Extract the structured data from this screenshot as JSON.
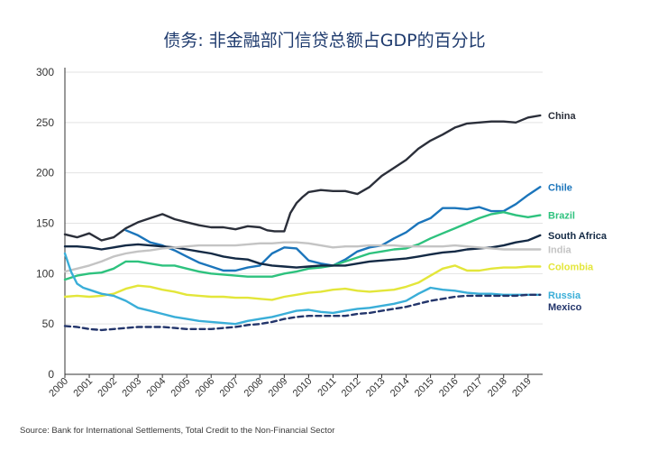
{
  "chart_data": {
    "type": "line",
    "title": "债务: 非金融部门信贷总额占GDP的百分比",
    "source": "Source: Bank for International Settlements, Total Credit to the Non-Financial Sector",
    "xlabel": "",
    "ylabel": "",
    "xlim": [
      2000,
      2019.6
    ],
    "ylim": [
      0,
      300
    ],
    "yticks": [
      0,
      50,
      100,
      150,
      200,
      250,
      300
    ],
    "xticks": [
      "2000",
      "2001",
      "2002",
      "2003",
      "2004",
      "2005",
      "2006",
      "2007",
      "2008",
      "2009",
      "2010",
      "2011",
      "2012",
      "2013",
      "2014",
      "2015",
      "2016",
      "2017",
      "2018",
      "2019"
    ],
    "grid": "horizontal",
    "series": [
      {
        "name": "China",
        "color": "#2b2f3a",
        "dash": false,
        "x": [
          2000,
          2000.5,
          2001,
          2001.5,
          2002,
          2002.5,
          2003,
          2003.5,
          2004,
          2004.5,
          2005,
          2005.5,
          2006,
          2006.5,
          2007,
          2007.5,
          2008,
          2008.3,
          2008.6,
          2009,
          2009.25,
          2009.5,
          2009.75,
          2010,
          2010.5,
          2011,
          2011.5,
          2012,
          2012.5,
          2013,
          2013.5,
          2014,
          2014.5,
          2015,
          2015.5,
          2016,
          2016.5,
          2017,
          2017.5,
          2018,
          2018.5,
          2019,
          2019.5
        ],
        "y": [
          139,
          136,
          140,
          133,
          136,
          145,
          151,
          155,
          159,
          154,
          151,
          148,
          146,
          146,
          144,
          147,
          146,
          143,
          142,
          142,
          160,
          170,
          176,
          181,
          183,
          182,
          182,
          179,
          186,
          197,
          205,
          213,
          224,
          232,
          238,
          245,
          249,
          250,
          251,
          251,
          250,
          255,
          257
        ]
      },
      {
        "name": "Chile",
        "color": "#1b75bb",
        "dash": false,
        "x": [
          2002.5,
          2003,
          2003.5,
          2004,
          2004.5,
          2005,
          2005.5,
          2006,
          2006.5,
          2007,
          2007.5,
          2008,
          2008.5,
          2009,
          2009.5,
          2010,
          2010.5,
          2011,
          2011.5,
          2012,
          2012.5,
          2013,
          2013.5,
          2014,
          2014.5,
          2015,
          2015.5,
          2016,
          2016.5,
          2017,
          2017.5,
          2018,
          2018.5,
          2019,
          2019.5
        ],
        "y": [
          143,
          138,
          131,
          128,
          123,
          117,
          111,
          107,
          103,
          103,
          106,
          108,
          120,
          126,
          125,
          113,
          110,
          108,
          114,
          122,
          126,
          128,
          135,
          141,
          150,
          155,
          165,
          165,
          164,
          166,
          162,
          162,
          169,
          178,
          186
        ]
      },
      {
        "name": "Brazil",
        "color": "#2ec27e",
        "dash": false,
        "x": [
          2000,
          2000.5,
          2001,
          2001.5,
          2002,
          2002.5,
          2003,
          2003.5,
          2004,
          2004.5,
          2005,
          2005.5,
          2006,
          2006.5,
          2007,
          2007.5,
          2008,
          2008.5,
          2009,
          2009.5,
          2010,
          2010.5,
          2011,
          2011.5,
          2012,
          2012.5,
          2013,
          2013.5,
          2014,
          2014.5,
          2015,
          2015.5,
          2016,
          2016.5,
          2017,
          2017.5,
          2018,
          2018.5,
          2019,
          2019.5
        ],
        "y": [
          94,
          98,
          100,
          101,
          105,
          112,
          112,
          110,
          108,
          108,
          105,
          102,
          100,
          99,
          98,
          97,
          97,
          97,
          100,
          102,
          105,
          106,
          108,
          112,
          116,
          120,
          122,
          124,
          125,
          129,
          135,
          140,
          145,
          150,
          155,
          159,
          161,
          158,
          156,
          158
        ]
      },
      {
        "name": "South Africa",
        "color": "#142a45",
        "dash": false,
        "x": [
          2000,
          2000.5,
          2001,
          2001.5,
          2002,
          2002.5,
          2003,
          2003.5,
          2004,
          2004.5,
          2005,
          2005.5,
          2006,
          2006.5,
          2007,
          2007.5,
          2008,
          2008.5,
          2009,
          2009.5,
          2010,
          2010.5,
          2011,
          2011.5,
          2012,
          2012.5,
          2013,
          2013.5,
          2014,
          2014.5,
          2015,
          2015.5,
          2016,
          2016.5,
          2017,
          2017.5,
          2018,
          2018.5,
          2019,
          2019.5
        ],
        "y": [
          127,
          127,
          126,
          124,
          126,
          128,
          129,
          128,
          127,
          126,
          124,
          122,
          120,
          117,
          115,
          114,
          110,
          108,
          107,
          106,
          107,
          108,
          108,
          108,
          110,
          112,
          113,
          114,
          115,
          117,
          119,
          121,
          122,
          124,
          125,
          126,
          128,
          131,
          133,
          138
        ]
      },
      {
        "name": "India",
        "color": "#c4c4c4",
        "dash": false,
        "x": [
          2000,
          2000.5,
          2001,
          2001.5,
          2002,
          2002.5,
          2003,
          2003.5,
          2004,
          2004.5,
          2005,
          2005.5,
          2006,
          2006.5,
          2007,
          2007.5,
          2008,
          2008.5,
          2009,
          2009.5,
          2010,
          2010.5,
          2011,
          2011.5,
          2012,
          2012.5,
          2013,
          2013.5,
          2014,
          2014.5,
          2015,
          2015.5,
          2016,
          2016.5,
          2017,
          2017.5,
          2018,
          2018.5,
          2019,
          2019.5
        ],
        "y": [
          102,
          105,
          108,
          112,
          117,
          120,
          122,
          123,
          125,
          126,
          127,
          128,
          128,
          128,
          128,
          129,
          130,
          130,
          131,
          131,
          130,
          128,
          126,
          127,
          127,
          128,
          128,
          128,
          127,
          127,
          127,
          127,
          128,
          127,
          126,
          125,
          124,
          124,
          124,
          124
        ]
      },
      {
        "name": "Colombia",
        "color": "#e3e63a",
        "dash": false,
        "x": [
          2000,
          2000.5,
          2001,
          2001.5,
          2002,
          2002.5,
          2003,
          2003.5,
          2004,
          2004.5,
          2005,
          2005.5,
          2006,
          2006.5,
          2007,
          2007.5,
          2008,
          2008.5,
          2009,
          2009.5,
          2010,
          2010.5,
          2011,
          2011.5,
          2012,
          2012.5,
          2013,
          2013.5,
          2014,
          2014.5,
          2015,
          2015.5,
          2016,
          2016.5,
          2017,
          2017.5,
          2018,
          2018.5,
          2019,
          2019.5
        ],
        "y": [
          77,
          78,
          77,
          78,
          80,
          85,
          88,
          87,
          84,
          82,
          79,
          78,
          77,
          77,
          76,
          76,
          75,
          74,
          77,
          79,
          81,
          82,
          84,
          85,
          83,
          82,
          83,
          84,
          87,
          91,
          98,
          105,
          108,
          103,
          103,
          105,
          106,
          106,
          107,
          107
        ]
      },
      {
        "name": "Russia",
        "color": "#3aaed8",
        "dash": false,
        "x": [
          2000,
          2000.25,
          2000.5,
          2000.75,
          2001,
          2001.5,
          2002,
          2002.5,
          2003,
          2003.5,
          2004,
          2004.5,
          2005,
          2005.5,
          2006,
          2006.5,
          2007,
          2007.5,
          2008,
          2008.5,
          2009,
          2009.5,
          2010,
          2010.5,
          2011,
          2011.5,
          2012,
          2012.5,
          2013,
          2013.5,
          2014,
          2014.5,
          2015,
          2015.5,
          2016,
          2016.5,
          2017,
          2017.5,
          2018,
          2018.5,
          2019,
          2019.5
        ],
        "y": [
          120,
          102,
          90,
          86,
          84,
          80,
          78,
          73,
          66,
          63,
          60,
          57,
          55,
          53,
          52,
          51,
          50,
          53,
          55,
          57,
          60,
          63,
          64,
          62,
          61,
          63,
          65,
          66,
          68,
          70,
          73,
          80,
          86,
          84,
          83,
          81,
          80,
          80,
          79,
          79,
          79,
          79
        ]
      },
      {
        "name": "Mexico",
        "color": "#23356b",
        "dash": true,
        "x": [
          2000,
          2000.5,
          2001,
          2001.5,
          2002,
          2002.5,
          2003,
          2003.5,
          2004,
          2004.5,
          2005,
          2005.5,
          2006,
          2006.5,
          2007,
          2007.5,
          2008,
          2008.5,
          2009,
          2009.5,
          2010,
          2010.5,
          2011,
          2011.5,
          2012,
          2012.5,
          2013,
          2013.5,
          2014,
          2014.5,
          2015,
          2015.5,
          2016,
          2016.5,
          2017,
          2017.5,
          2018,
          2018.5,
          2019,
          2019.5
        ],
        "y": [
          48,
          47,
          45,
          44,
          45,
          46,
          47,
          47,
          47,
          46,
          45,
          45,
          45,
          46,
          47,
          49,
          50,
          52,
          55,
          57,
          58,
          58,
          58,
          58,
          60,
          61,
          63,
          65,
          67,
          70,
          73,
          75,
          77,
          78,
          78,
          78,
          78,
          78,
          79,
          79
        ]
      }
    ]
  }
}
